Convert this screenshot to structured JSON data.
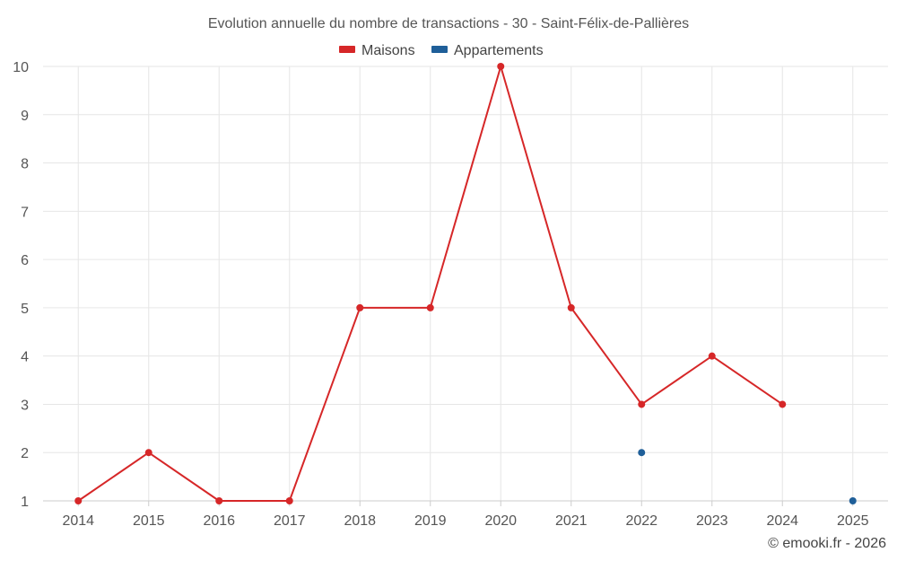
{
  "chart_data": {
    "type": "line",
    "title": "Evolution annuelle du nombre de transactions - 30 - Saint-Félix-de-Pallières",
    "categories": [
      "2014",
      "2015",
      "2016",
      "2017",
      "2018",
      "2019",
      "2020",
      "2021",
      "2022",
      "2023",
      "2024",
      "2025"
    ],
    "ylim": [
      1,
      10
    ],
    "yticks": [
      "1",
      "2",
      "3",
      "4",
      "5",
      "6",
      "7",
      "8",
      "9",
      "10"
    ],
    "grid": true,
    "legend_position": "top-center",
    "series": [
      {
        "name": "Maisons",
        "color": "#d62728",
        "values": [
          1,
          2,
          1,
          1,
          5,
          5,
          10,
          5,
          3,
          4,
          3,
          null
        ]
      },
      {
        "name": "Appartements",
        "color": "#1f5f99",
        "values": [
          null,
          null,
          null,
          null,
          null,
          null,
          null,
          null,
          2,
          null,
          null,
          1
        ]
      }
    ],
    "credit": "© emooki.fr - 2026"
  }
}
